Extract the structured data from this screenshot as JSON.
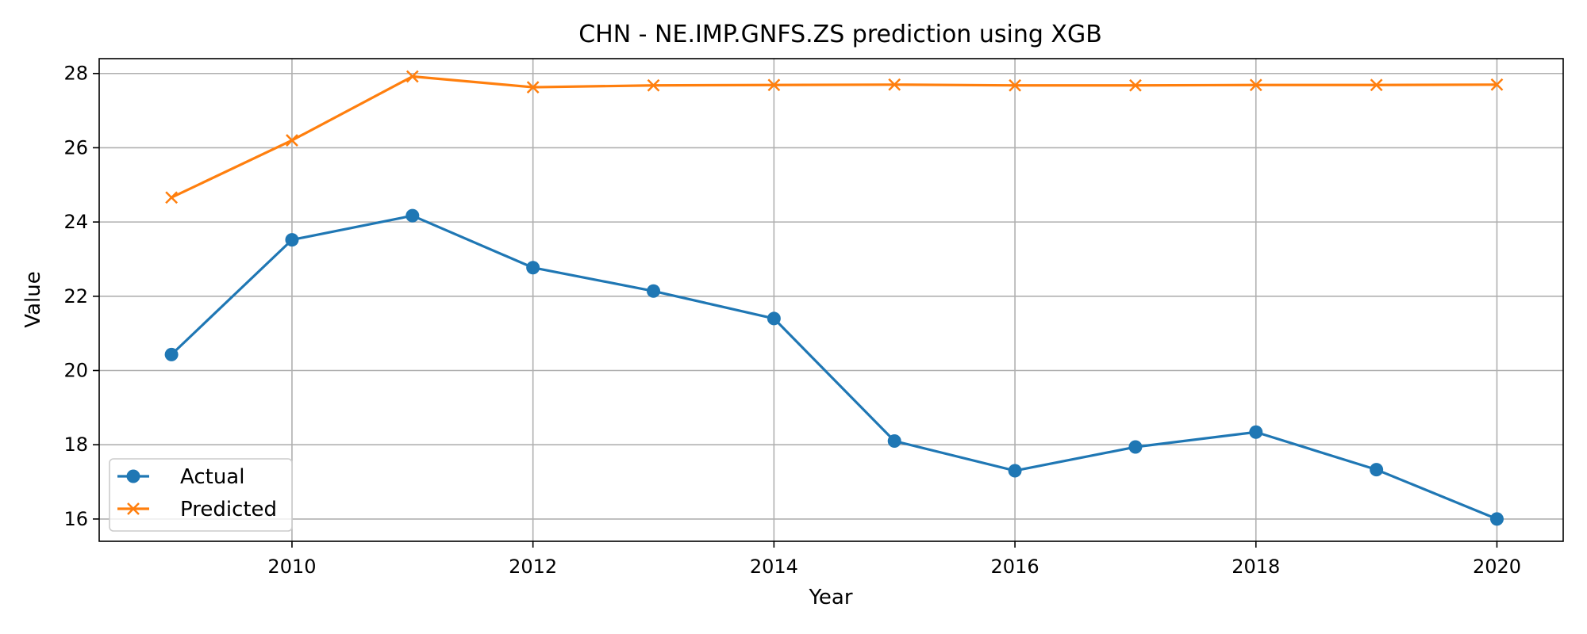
{
  "chart_data": {
    "type": "line",
    "title": "CHN - NE.IMP.GNFS.ZS prediction using XGB",
    "xlabel": "Year",
    "ylabel": "Value",
    "x": [
      2009,
      2010,
      2011,
      2012,
      2013,
      2014,
      2015,
      2016,
      2017,
      2018,
      2019,
      2020
    ],
    "xlim": [
      2008.4,
      2020.55
    ],
    "ylim": [
      15.4,
      28.4
    ],
    "x_ticks": [
      2010,
      2012,
      2014,
      2016,
      2018,
      2020
    ],
    "y_ticks": [
      16,
      18,
      20,
      22,
      24,
      26,
      28
    ],
    "grid": true,
    "legend_position": "lower-left",
    "series": [
      {
        "name": "Actual",
        "color": "#1f77b4",
        "marker": "circle",
        "values": [
          20.43,
          23.52,
          24.17,
          22.77,
          22.14,
          21.4,
          18.1,
          17.3,
          17.94,
          18.34,
          17.33,
          16.0
        ]
      },
      {
        "name": "Predicted",
        "color": "#ff7f0e",
        "marker": "x",
        "values": [
          24.66,
          26.2,
          27.92,
          27.63,
          27.68,
          27.69,
          27.7,
          27.68,
          27.68,
          27.69,
          27.69,
          27.7
        ]
      }
    ]
  }
}
